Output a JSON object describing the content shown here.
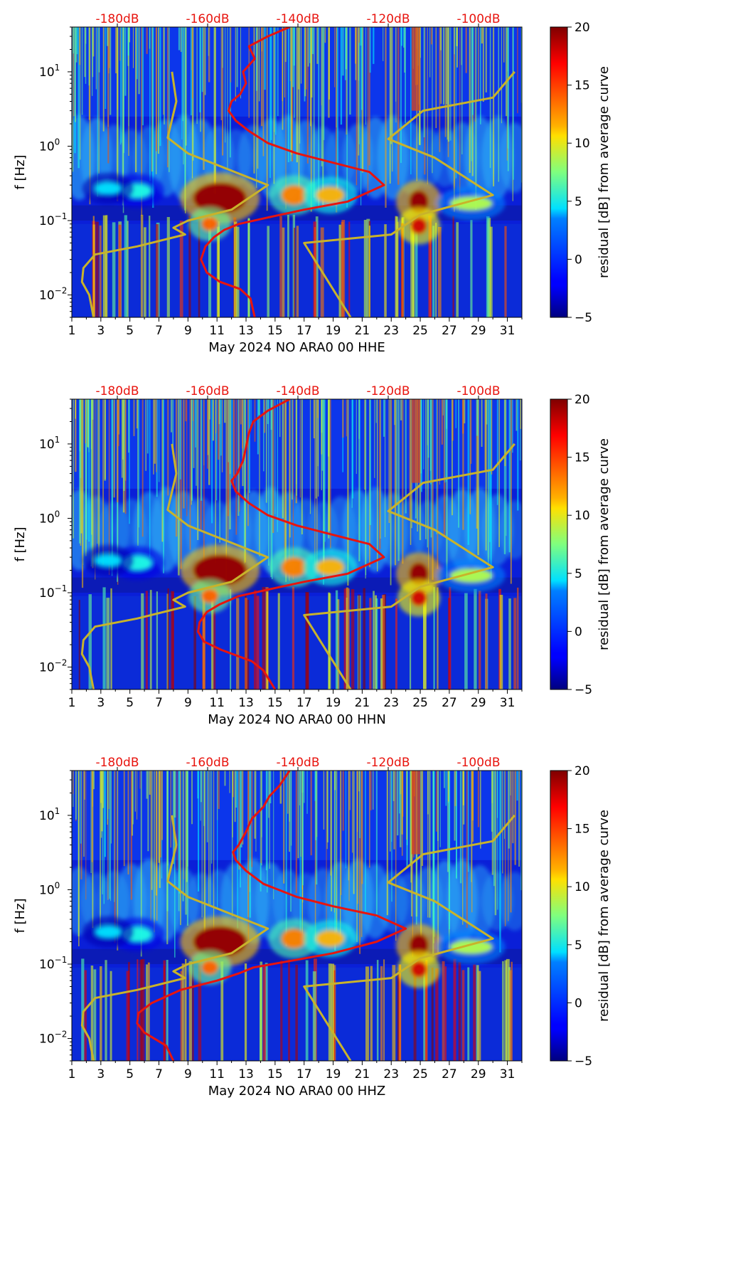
{
  "chart_data": [
    {
      "type": "heatmap",
      "xlabel": "May 2024 NO ARA0 00 HHE",
      "ylabel": "f [Hz]",
      "x_ticks": [
        "1",
        "3",
        "5",
        "7",
        "9",
        "11",
        "13",
        "15",
        "17",
        "19",
        "21",
        "23",
        "25",
        "27",
        "29",
        "31"
      ],
      "x_range": [
        1,
        32
      ],
      "y_scale": "log",
      "y_range": [
        0.005,
        40
      ],
      "y_ticks": [
        {
          "base": "10",
          "exp": "1"
        },
        {
          "base": "10",
          "exp": "0"
        },
        {
          "base": "10",
          "exp": "−1"
        },
        {
          "base": "10",
          "exp": "−2"
        }
      ],
      "top_axis_labels": [
        "-180dB",
        "-160dB",
        "-140dB",
        "-120dB",
        "-100dB"
      ],
      "colorbar": {
        "label": "residual [dB] from average curve",
        "ticks": [
          "20",
          "15",
          "10",
          "5",
          "0",
          "−5"
        ],
        "range": [
          -5,
          20
        ]
      },
      "mean_curve": {
        "color": "#e8140e",
        "points": [
          [
            13.6,
            0.005
          ],
          [
            13.3,
            0.009
          ],
          [
            12.6,
            0.012
          ],
          [
            11.2,
            0.015
          ],
          [
            10.3,
            0.02
          ],
          [
            9.9,
            0.03
          ],
          [
            10.2,
            0.045
          ],
          [
            10.8,
            0.06
          ],
          [
            11.5,
            0.075
          ],
          [
            12.5,
            0.09
          ],
          [
            14.5,
            0.11
          ],
          [
            17,
            0.14
          ],
          [
            20,
            0.18
          ],
          [
            22.5,
            0.3
          ],
          [
            21.5,
            0.45
          ],
          [
            19,
            0.6
          ],
          [
            16.5,
            0.8
          ],
          [
            14.5,
            1.1
          ],
          [
            13.2,
            1.6
          ],
          [
            12.3,
            2.2
          ],
          [
            11.8,
            3
          ],
          [
            12.0,
            4
          ],
          [
            12.6,
            5
          ],
          [
            13.0,
            7
          ],
          [
            12.8,
            10
          ],
          [
            13.6,
            15
          ],
          [
            13.2,
            22
          ],
          [
            14.5,
            30
          ],
          [
            16,
            40
          ]
        ]
      },
      "model_curves": {
        "color": "#c8b32b",
        "low": [
          [
            2.5,
            0.005
          ],
          [
            2.2,
            0.01
          ],
          [
            1.7,
            0.015
          ],
          [
            1.8,
            0.023
          ],
          [
            2.6,
            0.035
          ],
          [
            5.5,
            0.045
          ],
          [
            8.8,
            0.065
          ],
          [
            8.0,
            0.08
          ],
          [
            9.0,
            0.1
          ],
          [
            12,
            0.14
          ],
          [
            14.5,
            0.3
          ],
          [
            9,
            0.8
          ],
          [
            7.6,
            1.3
          ],
          [
            8.2,
            4
          ],
          [
            7.9,
            10
          ]
        ],
        "high": [
          [
            20.2,
            0.005
          ],
          [
            17.0,
            0.05
          ],
          [
            23.0,
            0.065
          ],
          [
            25,
            0.12
          ],
          [
            30,
            0.22
          ],
          [
            26,
            0.7
          ],
          [
            22.8,
            1.25
          ],
          [
            25.2,
            3
          ],
          [
            30,
            4.5
          ],
          [
            31.5,
            10
          ]
        ]
      }
    },
    {
      "type": "heatmap",
      "xlabel": "May 2024 NO ARA0 00 HHN",
      "ylabel": "f [Hz]",
      "x_ticks": [
        "1",
        "3",
        "5",
        "7",
        "9",
        "11",
        "13",
        "15",
        "17",
        "19",
        "21",
        "23",
        "25",
        "27",
        "29",
        "31"
      ],
      "x_range": [
        1,
        32
      ],
      "y_scale": "log",
      "y_range": [
        0.005,
        40
      ],
      "y_ticks": [
        {
          "base": "10",
          "exp": "1"
        },
        {
          "base": "10",
          "exp": "0"
        },
        {
          "base": "10",
          "exp": "−1"
        },
        {
          "base": "10",
          "exp": "−2"
        }
      ],
      "top_axis_labels": [
        "-180dB",
        "-160dB",
        "-140dB",
        "-120dB",
        "-100dB"
      ],
      "colorbar": {
        "label": "residual [dB] from average curve",
        "ticks": [
          "20",
          "15",
          "10",
          "5",
          "0",
          "−5"
        ],
        "range": [
          -5,
          20
        ]
      },
      "mean_curve": {
        "color": "#e8140e",
        "points": [
          [
            15,
            0.005
          ],
          [
            14.2,
            0.009
          ],
          [
            13.4,
            0.012
          ],
          [
            11.3,
            0.017
          ],
          [
            10.1,
            0.022
          ],
          [
            9.7,
            0.03
          ],
          [
            9.8,
            0.04
          ],
          [
            10.3,
            0.055
          ],
          [
            11.2,
            0.07
          ],
          [
            12.5,
            0.09
          ],
          [
            14.5,
            0.11
          ],
          [
            17,
            0.14
          ],
          [
            20,
            0.18
          ],
          [
            22.5,
            0.3
          ],
          [
            21.5,
            0.45
          ],
          [
            19,
            0.6
          ],
          [
            16.5,
            0.8
          ],
          [
            14.5,
            1.1
          ],
          [
            13.2,
            1.6
          ],
          [
            12.3,
            2.3
          ],
          [
            12.0,
            3.2
          ],
          [
            12.4,
            4
          ],
          [
            12.8,
            6
          ],
          [
            13.0,
            9
          ],
          [
            13.2,
            14
          ],
          [
            13.5,
            20
          ],
          [
            14.5,
            28
          ],
          [
            16,
            40
          ]
        ]
      },
      "model_curves": {
        "color": "#c8b32b",
        "low": [
          [
            2.5,
            0.005
          ],
          [
            2.2,
            0.01
          ],
          [
            1.7,
            0.015
          ],
          [
            1.8,
            0.023
          ],
          [
            2.6,
            0.035
          ],
          [
            5.5,
            0.045
          ],
          [
            8.8,
            0.065
          ],
          [
            8.0,
            0.08
          ],
          [
            9.0,
            0.1
          ],
          [
            12,
            0.14
          ],
          [
            14.5,
            0.3
          ],
          [
            9,
            0.8
          ],
          [
            7.6,
            1.3
          ],
          [
            8.2,
            4
          ],
          [
            7.9,
            10
          ]
        ],
        "high": [
          [
            20.2,
            0.005
          ],
          [
            17.0,
            0.05
          ],
          [
            23.0,
            0.065
          ],
          [
            25,
            0.12
          ],
          [
            30,
            0.22
          ],
          [
            26,
            0.7
          ],
          [
            22.8,
            1.25
          ],
          [
            25.2,
            3
          ],
          [
            30,
            4.5
          ],
          [
            31.5,
            10
          ]
        ]
      }
    },
    {
      "type": "heatmap",
      "xlabel": "May 2024 NO ARA0 00 HHZ",
      "ylabel": "f [Hz]",
      "x_ticks": [
        "1",
        "3",
        "5",
        "7",
        "9",
        "11",
        "13",
        "15",
        "17",
        "19",
        "21",
        "23",
        "25",
        "27",
        "29",
        "31"
      ],
      "x_range": [
        1,
        32
      ],
      "y_scale": "log",
      "y_range": [
        0.005,
        40
      ],
      "y_ticks": [
        {
          "base": "10",
          "exp": "1"
        },
        {
          "base": "10",
          "exp": "0"
        },
        {
          "base": "10",
          "exp": "−1"
        },
        {
          "base": "10",
          "exp": "−2"
        }
      ],
      "top_axis_labels": [
        "-180dB",
        "-160dB",
        "-140dB",
        "-120dB",
        "-100dB"
      ],
      "colorbar": {
        "label": "residual [dB] from average curve",
        "ticks": [
          "20",
          "15",
          "10",
          "5",
          "0",
          "−5"
        ],
        "range": [
          -5,
          20
        ]
      },
      "mean_curve": {
        "color": "#e8140e",
        "points": [
          [
            8,
            0.005
          ],
          [
            7.5,
            0.008
          ],
          [
            6.0,
            0.012
          ],
          [
            5.5,
            0.016
          ],
          [
            5.6,
            0.022
          ],
          [
            6.5,
            0.03
          ],
          [
            8.5,
            0.045
          ],
          [
            11,
            0.06
          ],
          [
            12.5,
            0.075
          ],
          [
            13.5,
            0.09
          ],
          [
            16,
            0.11
          ],
          [
            19,
            0.14
          ],
          [
            22,
            0.2
          ],
          [
            24,
            0.3
          ],
          [
            22,
            0.45
          ],
          [
            19,
            0.6
          ],
          [
            16.5,
            0.8
          ],
          [
            14.2,
            1.2
          ],
          [
            13,
            1.8
          ],
          [
            12.3,
            2.5
          ],
          [
            12.1,
            3.2
          ],
          [
            12.5,
            4
          ],
          [
            13.0,
            6
          ],
          [
            13.4,
            9
          ],
          [
            14.2,
            13
          ],
          [
            14.6,
            18
          ],
          [
            15.3,
            25
          ],
          [
            16,
            40
          ]
        ]
      },
      "model_curves": {
        "color": "#c8b32b",
        "low": [
          [
            2.5,
            0.005
          ],
          [
            2.2,
            0.01
          ],
          [
            1.7,
            0.015
          ],
          [
            1.8,
            0.023
          ],
          [
            2.6,
            0.035
          ],
          [
            5.5,
            0.045
          ],
          [
            8.8,
            0.065
          ],
          [
            8.0,
            0.08
          ],
          [
            9.0,
            0.1
          ],
          [
            12,
            0.14
          ],
          [
            14.5,
            0.3
          ],
          [
            9,
            0.8
          ],
          [
            7.6,
            1.3
          ],
          [
            8.2,
            4
          ],
          [
            7.9,
            10
          ]
        ],
        "high": [
          [
            20.2,
            0.005
          ],
          [
            17.0,
            0.05
          ],
          [
            23.0,
            0.065
          ],
          [
            25,
            0.12
          ],
          [
            30,
            0.22
          ],
          [
            26,
            0.7
          ],
          [
            22.8,
            1.25
          ],
          [
            25.2,
            3
          ],
          [
            30,
            4.5
          ],
          [
            31.5,
            10
          ]
        ]
      }
    }
  ]
}
